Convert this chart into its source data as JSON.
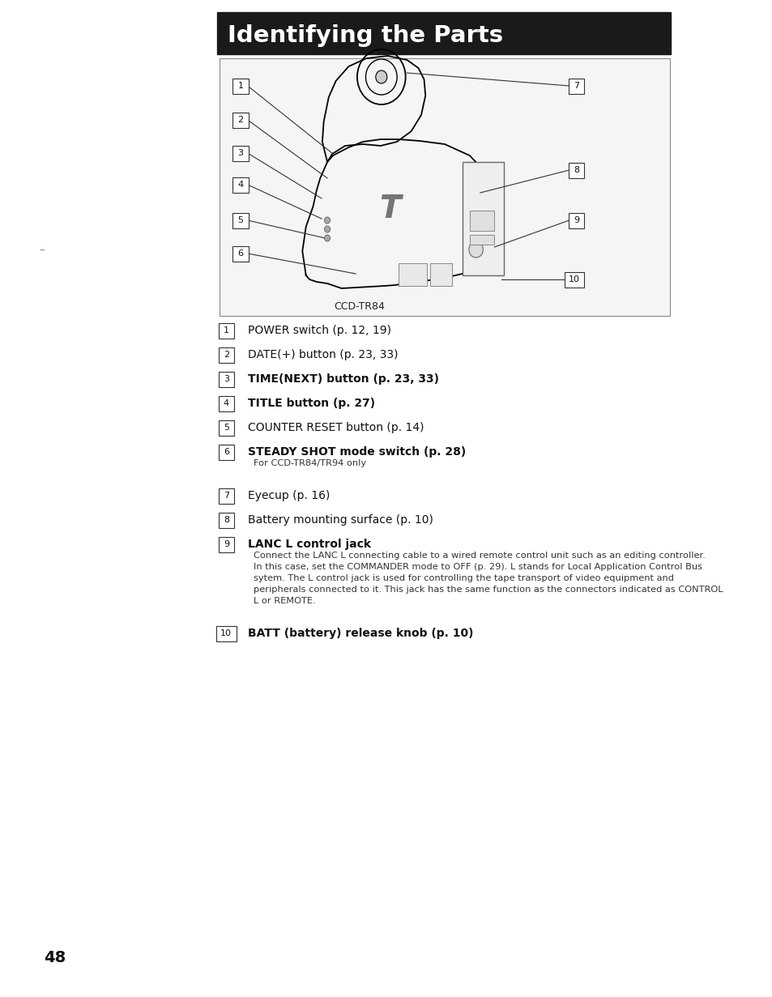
{
  "page_bg": "#ffffff",
  "title_bg": "#1a1a1a",
  "title_text": "Identifying the Parts",
  "title_text_color": "#ffffff",
  "title_font_size": 22,
  "page_number": "48",
  "diagram_label": "CCD-TR84",
  "items": [
    {
      "num": "1",
      "bold": false,
      "text": "POWER switch (p. 12, 19)",
      "sub": ""
    },
    {
      "num": "2",
      "bold": false,
      "text": "DATE(+) button (p. 23, 33)",
      "sub": ""
    },
    {
      "num": "3",
      "bold": true,
      "text": "TIME(NEXT) button (p. 23, 33)",
      "sub": ""
    },
    {
      "num": "4",
      "bold": true,
      "text": "TITLE button (p. 27)",
      "sub": ""
    },
    {
      "num": "5",
      "bold": false,
      "text": "COUNTER RESET button (p. 14)",
      "sub": ""
    },
    {
      "num": "6",
      "bold": true,
      "text": "STEADY SHOT mode switch (p. 28)",
      "sub": "For CCD-TR84/TR94 only"
    },
    {
      "num": "7",
      "bold": false,
      "text": "Eyecup (p. 16)",
      "sub": ""
    },
    {
      "num": "8",
      "bold": false,
      "text": "Battery mounting surface (p. 10)",
      "sub": ""
    },
    {
      "num": "9",
      "bold": true,
      "text": "LANC L control jack",
      "sub": "Connect the LANC L connecting cable to a wired remote control unit such as an editing controller.\nIn this case, set the COMMANDER mode to OFF (p. 29). L stands for Local Application Control Bus\nsytem. The L control jack is used for controlling the tape transport of video equipment and\nperipherals connected to it. This jack has the same function as the connectors indicated as CONTROL\nL or REMOTE."
    },
    {
      "num": "10",
      "bold": true,
      "text": "BATT (battery) release knob (p. 10)",
      "sub": ""
    }
  ]
}
